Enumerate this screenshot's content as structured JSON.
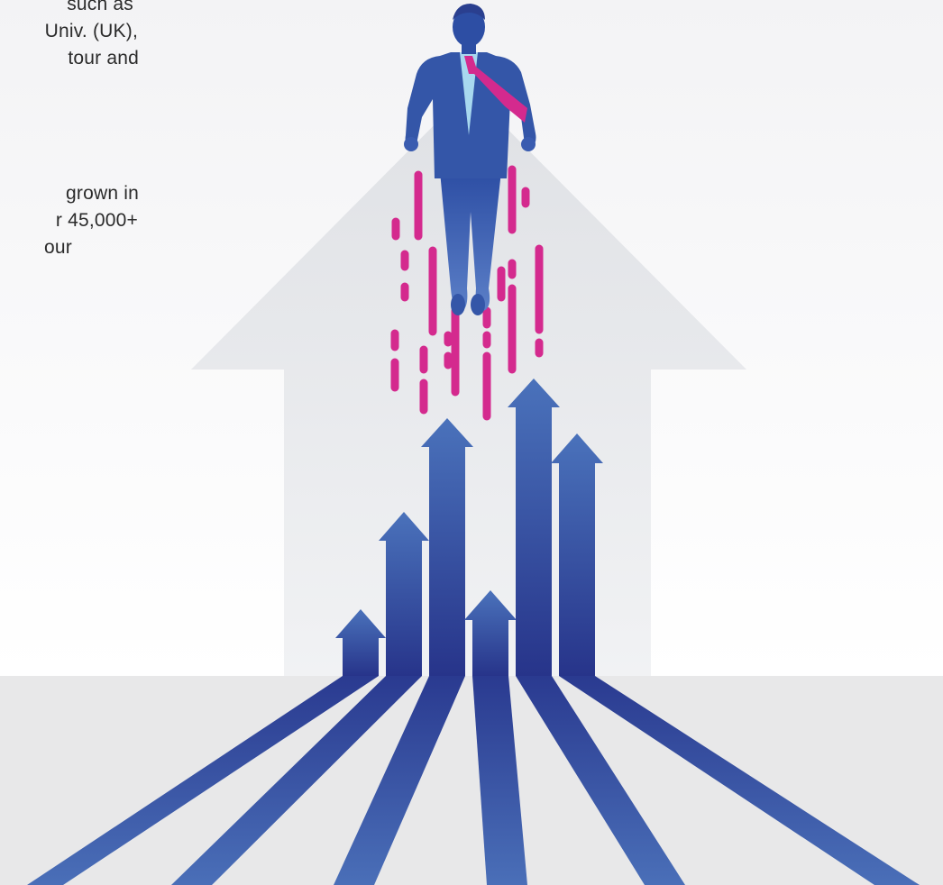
{
  "text": {
    "paragraph1": [
      "such as",
      "Univ. (UK),",
      "tour and"
    ],
    "paragraph2": [
      "grown in",
      "r 45,000+",
      "our"
    ]
  },
  "illustration": {
    "subject": "businessman-flying-upward-over-rising-arrows",
    "colors": {
      "arrow_blue_light": "#4a6fb8",
      "arrow_blue_dark": "#27358a",
      "background_arrow": "#e3e5e8",
      "floor": "#e8e8e9",
      "sky_top": "#f3f3f5",
      "jet_trail_magenta": "#d42a8e",
      "shirt": "#a8d8ef",
      "tie": "#d42a8e"
    }
  }
}
